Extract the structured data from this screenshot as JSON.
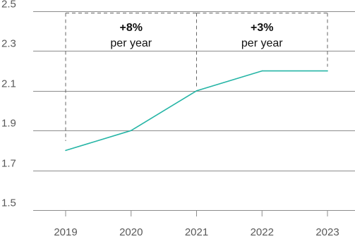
{
  "chart_data": {
    "type": "line",
    "title": "",
    "xlabel": "",
    "ylabel": "",
    "x": [
      "2019",
      "2020",
      "2021",
      "2022",
      "2023"
    ],
    "series": [
      {
        "values": [
          1.8,
          1.9,
          2.1,
          2.2,
          2.2
        ],
        "color": "#26b5a6"
      }
    ],
    "ylim": [
      1.5,
      2.5
    ],
    "y_ticks": [
      "1.5",
      "1.7",
      "1.9",
      "2.1",
      "2.3",
      "2.5"
    ],
    "grid": "horizontal",
    "annotations": [
      {
        "from": "2019",
        "to": "2021",
        "value": "+8%",
        "unit": "per year"
      },
      {
        "from": "2021",
        "to": "2023",
        "value": "+3%",
        "unit": "per year"
      }
    ]
  },
  "colors": {
    "line": "#26b5a6",
    "grid": "#8c8c8c",
    "bracket": "#666666",
    "text": "#595959"
  }
}
